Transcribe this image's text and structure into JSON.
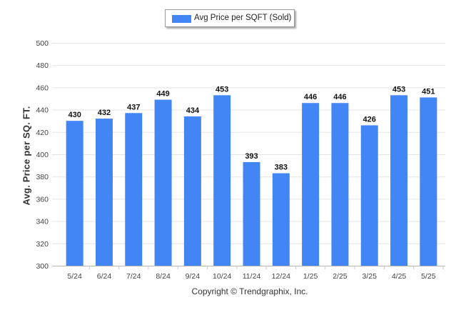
{
  "chart_data": {
    "type": "bar",
    "categories": [
      "5/24",
      "6/24",
      "7/24",
      "8/24",
      "9/24",
      "10/24",
      "11/24",
      "12/24",
      "1/25",
      "2/25",
      "3/25",
      "4/25",
      "5/25"
    ],
    "series": [
      {
        "name": "Avg Price per SQFT (Sold)",
        "values": [
          430,
          432,
          437,
          449,
          434,
          453,
          393,
          383,
          446,
          446,
          426,
          453,
          451
        ]
      }
    ],
    "xlabel": "",
    "ylabel": "Avg. Price per SQ. FT.",
    "ylim": [
      300,
      500
    ],
    "yticks": [
      300,
      320,
      340,
      360,
      380,
      400,
      420,
      440,
      460,
      480,
      500
    ],
    "grid": true,
    "legend_position": "top-center",
    "data_labels": true
  },
  "colors": {
    "bar": "#4285f4"
  },
  "footer": {
    "copyright": "Copyright © Trendgraphix, Inc."
  }
}
